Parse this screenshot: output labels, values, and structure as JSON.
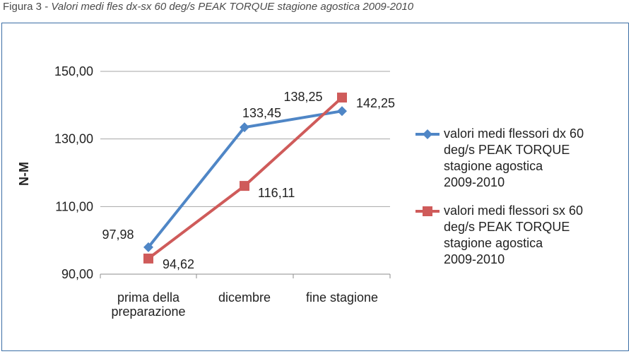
{
  "caption": {
    "label": "Figura 3 - ",
    "text": "Valori medi fles dx-sx 60 deg/s PEAK TORQUE stagione agostica 2009-2010"
  },
  "colors": {
    "frame": "#3b6ea5",
    "series_dx": "#4f86c6",
    "series_sx": "#cf5b5a",
    "grid": "#a6a6a6"
  },
  "chart_data": {
    "type": "line",
    "categories": [
      [
        "prima della",
        "preparazione"
      ],
      [
        "dicembre"
      ],
      [
        "fine stagione"
      ]
    ],
    "ylabel": "N-M",
    "ylim": [
      90,
      150
    ],
    "yticks": [
      "90,00",
      "110,00",
      "130,00",
      "150,00"
    ],
    "ytick_values": [
      90,
      110,
      130,
      150
    ],
    "grid": true,
    "legend_position": "right",
    "series": [
      {
        "name_lines": [
          "valori medi flessori dx 60",
          "deg/s PEAK TORQUE",
          "stagione agostica",
          "2009-2010"
        ],
        "values": [
          97.98,
          133.45,
          138.25
        ],
        "labels": [
          "97,98",
          "133,45",
          "138,25"
        ],
        "marker": "diamond"
      },
      {
        "name_lines": [
          "valori medi flessori sx 60",
          "deg/s PEAK TORQUE",
          "stagione agostica",
          "2009-2010"
        ],
        "values": [
          94.62,
          116.11,
          142.25
        ],
        "labels": [
          "94,62",
          "116,11",
          "142,25"
        ],
        "marker": "square"
      }
    ]
  }
}
